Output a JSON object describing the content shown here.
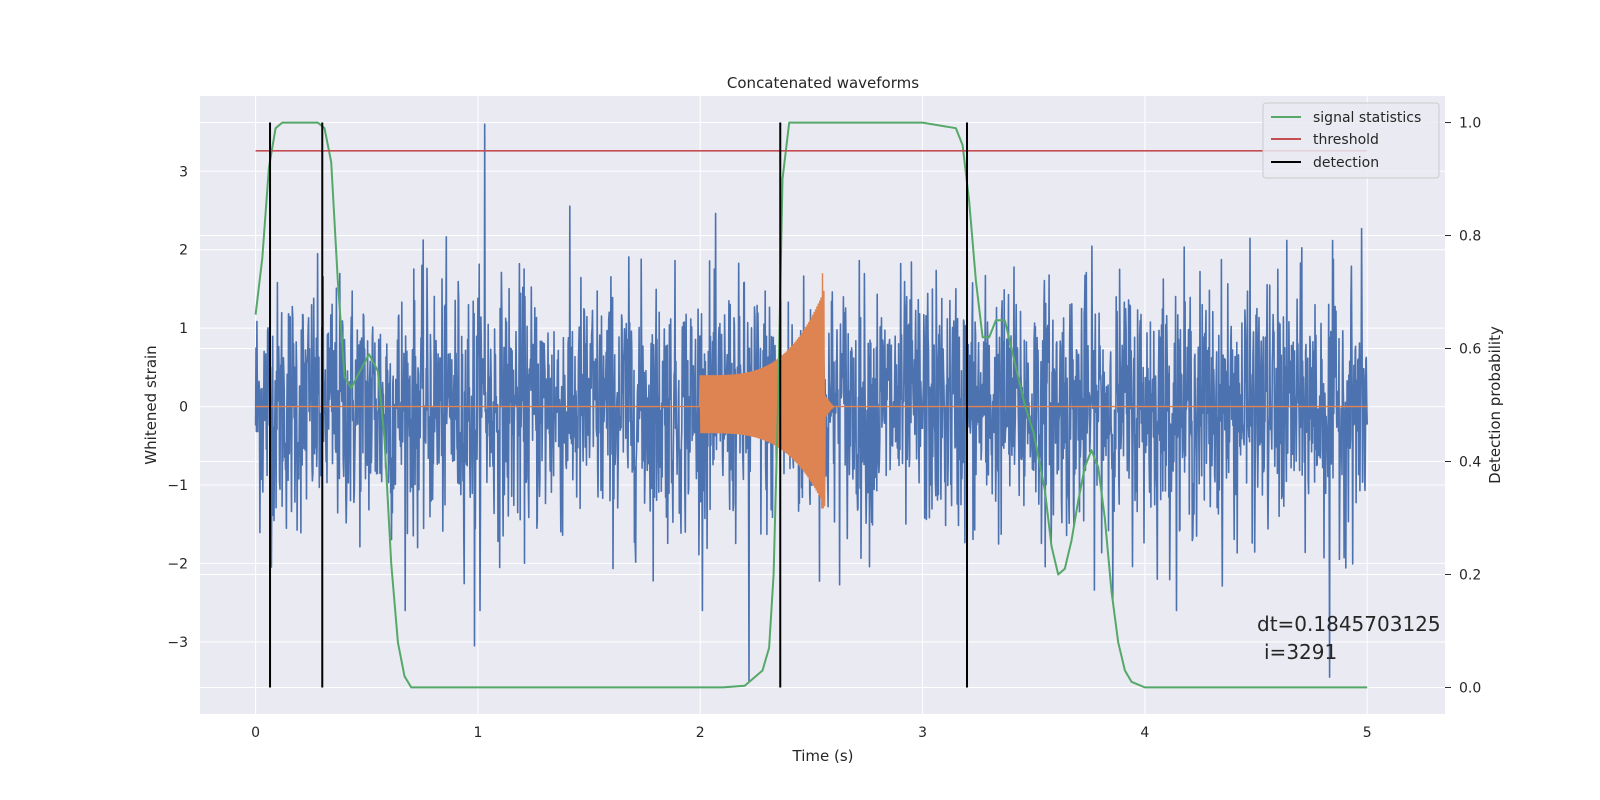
{
  "chart_data": {
    "type": "line",
    "title": "Concatenated waveforms",
    "xlabel": "Time (s)",
    "ylabel": "Whitened strain",
    "y2label": "Detection probability",
    "xlim": [
      -0.25,
      5.35
    ],
    "ylim": [
      -3.92,
      3.96
    ],
    "y2lim": [
      -0.047,
      1.047
    ],
    "xticks": [
      0,
      1,
      2,
      3,
      4,
      5
    ],
    "xtick_labels": [
      "0",
      "1",
      "2",
      "3",
      "4",
      "5"
    ],
    "yticks": [
      -3,
      -2,
      -1,
      0,
      1,
      2,
      3
    ],
    "ytick_labels": [
      "−3",
      "−2",
      "−1",
      "0",
      "1",
      "2",
      "3"
    ],
    "y2ticks": [
      0.0,
      0.2,
      0.4,
      0.6,
      0.8,
      1.0
    ],
    "y2tick_labels": [
      "0.0",
      "0.2",
      "0.4",
      "0.6",
      "0.8",
      "1.0"
    ],
    "grid": true,
    "legend_position": "top-right",
    "colors": {
      "strain": "#4c72b0",
      "injection": "#dd8452",
      "signal_statistics": "#55a868",
      "threshold": "#c44e52",
      "detection": "#000000",
      "background": "#eaeaf2",
      "grid": "#ffffff"
    },
    "strain": {
      "x_range": [
        0,
        5
      ],
      "typical_range": [
        -2.2,
        2.2
      ],
      "peak_max": 3.6,
      "peak_min": -3.5,
      "description_values": [
        {
          "x": 1.03,
          "y": 3.6
        },
        {
          "x": 0.985,
          "y": -3.05
        },
        {
          "x": 2.22,
          "y": -3.5
        },
        {
          "x": 4.83,
          "y": -3.45
        }
      ]
    },
    "injection": {
      "x_range": [
        2.0,
        2.56
      ],
      "start_amplitude": 0.4,
      "peak_x": 2.55,
      "peak_amplitude_pos": 1.7,
      "peak_amplitude_neg": -1.3
    },
    "series": [
      {
        "name": "signal statistics",
        "axis": "right",
        "x": [
          0.0,
          0.03,
          0.06,
          0.09,
          0.12,
          0.2,
          0.28,
          0.31,
          0.34,
          0.37,
          0.4,
          0.43,
          0.47,
          0.51,
          0.55,
          0.58,
          0.61,
          0.64,
          0.67,
          0.7,
          0.75,
          1.5,
          2.1,
          2.2,
          2.25,
          2.28,
          2.31,
          2.33,
          2.35,
          2.37,
          2.4,
          2.6,
          3.0,
          3.15,
          3.18,
          3.21,
          3.24,
          3.27,
          3.3,
          3.33,
          3.37,
          3.4,
          3.43,
          3.46,
          3.5,
          3.55,
          3.58,
          3.61,
          3.64,
          3.67,
          3.7,
          3.73,
          3.76,
          3.79,
          3.82,
          3.85,
          3.88,
          3.91,
          3.94,
          4.0,
          5.0
        ],
        "y": [
          0.66,
          0.76,
          0.92,
          0.99,
          1.0,
          1.0,
          1.0,
          0.99,
          0.93,
          0.72,
          0.55,
          0.53,
          0.56,
          0.59,
          0.56,
          0.44,
          0.22,
          0.08,
          0.02,
          0.0,
          0.0,
          0.0,
          0.0,
          0.003,
          0.02,
          0.03,
          0.07,
          0.2,
          0.5,
          0.9,
          1.0,
          1.0,
          1.0,
          0.99,
          0.96,
          0.86,
          0.72,
          0.62,
          0.62,
          0.65,
          0.65,
          0.6,
          0.55,
          0.5,
          0.45,
          0.35,
          0.25,
          0.2,
          0.21,
          0.26,
          0.33,
          0.39,
          0.42,
          0.39,
          0.3,
          0.17,
          0.08,
          0.03,
          0.01,
          0.0,
          0.0
        ]
      },
      {
        "name": "threshold",
        "axis": "right",
        "x": [
          0,
          5
        ],
        "y": [
          0.95,
          0.95
        ]
      },
      {
        "name": "detection",
        "axis": "right",
        "x": [
          0.065,
          0.3,
          2.36,
          3.2
        ],
        "y_range": [
          0.0,
          1.0
        ]
      }
    ],
    "legend": [
      "signal statistics",
      "threshold",
      "detection"
    ],
    "annotation_lines": [
      "dt=0.1845703125",
      "i=3291"
    ]
  }
}
